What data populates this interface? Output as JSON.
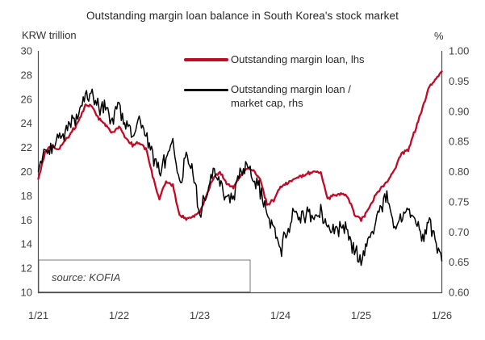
{
  "title": "Outstanding margin loan balance in South Korea's stock market",
  "left_axis_unit": "KRW trillion",
  "right_axis_unit": "%",
  "source_note": "source: KOFIA",
  "colors": {
    "lhs_line": "#c00a26",
    "rhs_line": "#000000",
    "axis": "#4d4d4d",
    "tick_text": "#404040"
  },
  "legend": {
    "items": [
      {
        "label": "Outstanding margin loan, lhs",
        "color": "#c00a26"
      },
      {
        "label_line1": "Outstanding margin loan /",
        "label_line2": "market cap, rhs",
        "color": "#000000"
      }
    ]
  },
  "chart_data": {
    "type": "line",
    "title": "Outstanding margin loan balance in South Korea's stock market",
    "grid": false,
    "legend_position": "top-center",
    "x_tick_labels": [
      "1/21",
      "1/22",
      "1/23",
      "1/24",
      "1/25",
      "1/26"
    ],
    "left_ylabel": "KRW trillion",
    "right_ylabel": "%",
    "left_ylim": [
      10,
      30
    ],
    "left_ticks": [
      10,
      12,
      14,
      16,
      18,
      20,
      22,
      24,
      26,
      28,
      30
    ],
    "right_ylim": [
      0.6,
      1.0
    ],
    "right_ticks": [
      0.6,
      0.65,
      0.7,
      0.75,
      0.8,
      0.85,
      0.9,
      0.95,
      1.0
    ],
    "x_monthly": [
      "2021-01",
      "2021-02",
      "2021-03",
      "2021-04",
      "2021-05",
      "2021-06",
      "2021-07",
      "2021-08",
      "2021-09",
      "2021-10",
      "2021-11",
      "2021-12",
      "2022-01",
      "2022-02",
      "2022-03",
      "2022-04",
      "2022-05",
      "2022-06",
      "2022-07",
      "2022-08",
      "2022-09",
      "2022-10",
      "2022-11",
      "2022-12",
      "2023-01",
      "2023-02",
      "2023-03",
      "2023-04",
      "2023-05",
      "2023-06",
      "2023-07",
      "2023-08",
      "2023-09",
      "2023-10",
      "2023-11",
      "2023-12",
      "2024-01",
      "2024-02",
      "2024-03",
      "2024-04",
      "2024-05",
      "2024-06",
      "2024-07",
      "2024-08",
      "2024-09",
      "2024-10",
      "2024-11",
      "2024-12",
      "2025-01",
      "2025-02",
      "2025-03",
      "2025-04",
      "2025-05",
      "2025-06",
      "2025-07",
      "2025-08",
      "2025-09",
      "2025-10",
      "2025-11",
      "2025-12",
      "2026-01"
    ],
    "series": [
      {
        "name": "Outstanding margin loan, lhs",
        "axis": "left",
        "unit": "KRW trillion",
        "color": "#c00a26",
        "values": [
          19.4,
          21.6,
          22.1,
          21.8,
          22.6,
          23.3,
          24.2,
          25.5,
          25.4,
          24.4,
          23.8,
          23.2,
          23.8,
          22.8,
          22.2,
          22.4,
          21.9,
          19.6,
          17.7,
          19.2,
          18.8,
          16.4,
          16.1,
          16.3,
          16.6,
          18.0,
          19.4,
          20.0,
          19.0,
          18.7,
          19.6,
          20.2,
          20.1,
          19.3,
          17.3,
          17.6,
          18.7,
          19.0,
          19.4,
          19.6,
          19.8,
          20.1,
          19.9,
          17.7,
          18.1,
          18.2,
          17.9,
          16.5,
          16.0,
          16.8,
          17.9,
          18.7,
          19.2,
          20.3,
          21.5,
          21.8,
          23.4,
          25.0,
          26.8,
          27.6,
          28.3
        ]
      },
      {
        "name": "Outstanding margin loan / market cap, rhs",
        "axis": "right",
        "unit": "%",
        "color": "#000000",
        "values": [
          0.8,
          0.838,
          0.835,
          0.858,
          0.868,
          0.888,
          0.893,
          0.93,
          0.928,
          0.908,
          0.91,
          0.885,
          0.912,
          0.872,
          0.862,
          0.888,
          0.858,
          0.828,
          0.798,
          0.818,
          0.852,
          0.782,
          0.83,
          0.798,
          0.728,
          0.758,
          0.8,
          0.78,
          0.75,
          0.762,
          0.8,
          0.818,
          0.792,
          0.768,
          0.728,
          0.708,
          0.668,
          0.7,
          0.733,
          0.722,
          0.733,
          0.722,
          0.737,
          0.7,
          0.698,
          0.71,
          0.698,
          0.668,
          0.65,
          0.69,
          0.71,
          0.742,
          0.752,
          0.712,
          0.722,
          0.738,
          0.72,
          0.688,
          0.718,
          0.698,
          0.652
        ]
      }
    ]
  }
}
